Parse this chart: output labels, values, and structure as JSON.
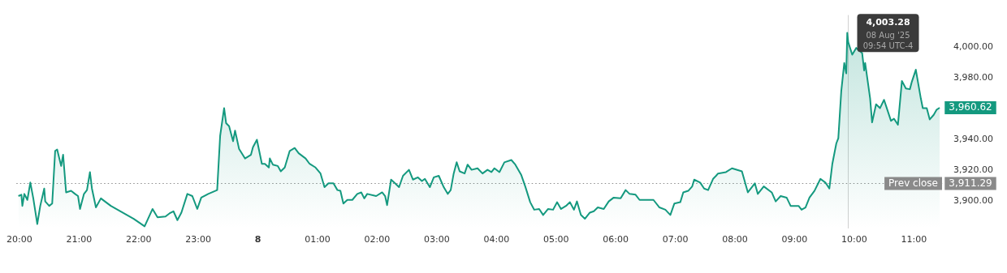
{
  "chart_data": {
    "type": "area",
    "x": [
      "2025-08-07T19:59",
      "2025-08-07T20:02",
      "2025-08-07T20:03",
      "2025-08-07T20:05",
      "2025-08-07T20:08",
      "2025-08-07T20:11",
      "2025-08-07T20:14",
      "2025-08-07T20:18",
      "2025-08-07T20:21",
      "2025-08-07T20:25",
      "2025-08-07T20:26",
      "2025-08-07T20:30",
      "2025-08-07T20:33",
      "2025-08-07T20:36",
      "2025-08-07T20:38",
      "2025-08-07T20:42",
      "2025-08-07T20:44",
      "2025-08-07T20:47",
      "2025-08-07T20:52",
      "2025-08-07T20:56",
      "2025-08-07T20:59",
      "2025-08-07T21:01",
      "2025-08-07T21:05",
      "2025-08-07T21:08",
      "2025-08-07T21:11",
      "2025-08-07T21:13",
      "2025-08-07T21:17",
      "2025-08-07T21:22",
      "2025-08-07T21:26",
      "2025-08-07T21:32",
      "2025-08-07T21:55",
      "2025-08-07T22:06",
      "2025-08-07T22:14",
      "2025-08-07T22:19",
      "2025-08-07T22:27",
      "2025-08-07T22:31",
      "2025-08-07T22:35",
      "2025-08-07T22:39",
      "2025-08-07T22:43",
      "2025-08-07T22:49",
      "2025-08-07T22:54",
      "2025-08-07T22:59",
      "2025-08-07T23:03",
      "2025-08-07T23:10",
      "2025-08-07T23:19",
      "2025-08-07T23:22",
      "2025-08-07T23:26",
      "2025-08-07T23:28",
      "2025-08-07T23:31",
      "2025-08-07T23:35",
      "2025-08-07T23:37",
      "2025-08-07T23:41",
      "2025-08-07T23:47",
      "2025-08-07T23:53",
      "2025-08-07T23:55",
      "2025-08-07T23:59",
      "2025-08-08T00:04",
      "2025-08-08T00:07",
      "2025-08-08T00:11",
      "2025-08-08T00:12",
      "2025-08-08T00:15",
      "2025-08-08T00:20",
      "2025-08-08T00:23",
      "2025-08-08T00:27",
      "2025-08-08T00:32",
      "2025-08-08T00:37",
      "2025-08-08T00:41",
      "2025-08-08T00:48",
      "2025-08-08T00:52",
      "2025-08-08T00:58",
      "2025-08-08T01:03",
      "2025-08-08T01:07",
      "2025-08-08T01:11",
      "2025-08-08T01:16",
      "2025-08-08T01:20",
      "2025-08-08T01:23",
      "2025-08-08T01:26",
      "2025-08-08T01:30",
      "2025-08-08T01:35",
      "2025-08-08T01:40",
      "2025-08-08T01:44",
      "2025-08-08T01:47",
      "2025-08-08T01:50",
      "2025-08-08T01:59",
      "2025-08-08T02:05",
      "2025-08-08T02:08",
      "2025-08-08T02:10",
      "2025-08-08T02:14",
      "2025-08-08T02:18",
      "2025-08-08T02:22",
      "2025-08-08T02:26",
      "2025-08-08T02:32",
      "2025-08-08T02:36",
      "2025-08-08T02:41",
      "2025-08-08T02:45",
      "2025-08-08T02:48",
      "2025-08-08T02:53",
      "2025-08-08T02:57",
      "2025-08-08T03:02",
      "2025-08-08T03:07",
      "2025-08-08T03:11",
      "2025-08-08T03:14",
      "2025-08-08T03:17",
      "2025-08-08T03:20",
      "2025-08-08T03:23",
      "2025-08-08T03:28",
      "2025-08-08T03:31",
      "2025-08-08T03:35",
      "2025-08-08T03:41",
      "2025-08-08T03:46",
      "2025-08-08T03:51",
      "2025-08-08T03:55",
      "2025-08-08T03:58",
      "2025-08-08T04:03",
      "2025-08-08T04:08",
      "2025-08-08T04:15",
      "2025-08-08T04:19",
      "2025-08-08T04:25",
      "2025-08-08T04:29",
      "2025-08-08T04:34",
      "2025-08-08T04:38",
      "2025-08-08T04:43",
      "2025-08-08T04:47",
      "2025-08-08T04:52",
      "2025-08-08T04:57",
      "2025-08-08T05:01",
      "2025-08-08T05:05",
      "2025-08-08T05:10",
      "2025-08-08T05:14",
      "2025-08-08T05:18",
      "2025-08-08T05:21",
      "2025-08-08T05:25",
      "2025-08-08T05:29",
      "2025-08-08T05:34",
      "2025-08-08T05:38",
      "2025-08-08T05:42",
      "2025-08-08T05:48",
      "2025-08-08T05:53",
      "2025-08-08T05:58",
      "2025-08-08T06:05",
      "2025-08-08T06:10",
      "2025-08-08T06:14",
      "2025-08-08T06:20",
      "2025-08-08T06:24",
      "2025-08-08T06:31",
      "2025-08-08T06:38",
      "2025-08-08T06:44",
      "2025-08-08T06:50",
      "2025-08-08T06:55",
      "2025-08-08T06:59",
      "2025-08-08T07:05",
      "2025-08-08T07:08",
      "2025-08-08T07:13",
      "2025-08-08T07:17",
      "2025-08-08T07:19",
      "2025-08-08T07:25",
      "2025-08-08T07:29",
      "2025-08-08T07:33",
      "2025-08-08T07:38",
      "2025-08-08T07:41",
      "2025-08-08T07:43",
      "2025-08-08T07:51",
      "2025-08-08T07:57",
      "2025-08-08T08:07",
      "2025-08-08T08:13",
      "2025-08-08T08:20",
      "2025-08-08T08:23",
      "2025-08-08T08:29",
      "2025-08-08T08:37",
      "2025-08-08T08:41",
      "2025-08-08T08:46",
      "2025-08-08T08:52",
      "2025-08-08T08:56",
      "2025-08-08T09:04",
      "2025-08-08T09:07",
      "2025-08-08T09:11",
      "2025-08-08T09:15",
      "2025-08-08T09:20",
      "2025-08-08T09:26",
      "2025-08-08T09:31",
      "2025-08-08T09:35",
      "2025-08-08T09:38",
      "2025-08-08T09:42",
      "2025-08-08T09:44",
      "2025-08-08T09:47",
      "2025-08-08T09:50",
      "2025-08-08T09:52",
      "2025-08-08T09:53",
      "2025-08-08T09:54",
      "2025-08-08T09:58",
      "2025-08-08T10:02",
      "2025-08-08T10:08",
      "2025-08-08T10:10",
      "2025-08-08T10:11",
      "2025-08-08T10:16",
      "2025-08-08T10:18",
      "2025-08-08T10:22",
      "2025-08-08T10:26",
      "2025-08-08T10:30",
      "2025-08-08T10:32",
      "2025-08-08T10:37",
      "2025-08-08T10:40",
      "2025-08-08T10:44",
      "2025-08-08T10:48",
      "2025-08-08T10:52",
      "2025-08-08T10:56",
      "2025-08-08T10:58",
      "2025-08-08T11:02",
      "2025-08-08T11:07",
      "2025-08-08T11:09",
      "2025-08-08T11:13",
      "2025-08-08T11:16",
      "2025-08-08T11:20",
      "2025-08-08T11:23",
      "2025-08-08T11:26"
    ],
    "series": [
      {
        "color": "#14997f",
        "values": [
          3903.1,
          3904.0,
          3896.7,
          3904.5,
          3900.6,
          3911.9,
          3901.6,
          3884.9,
          3896.7,
          3908.0,
          3899.6,
          3896.7,
          3898.2,
          3932.5,
          3933.4,
          3922.7,
          3930.0,
          3905.5,
          3906.5,
          3904.5,
          3903.1,
          3894.7,
          3904.5,
          3907.0,
          3918.7,
          3908.0,
          3895.7,
          3901.6,
          3899.6,
          3896.7,
          3888.3,
          3883.4,
          3894.7,
          3889.3,
          3889.8,
          3891.8,
          3893.2,
          3887.4,
          3892.3,
          3904.5,
          3903.1,
          3894.7,
          3902.1,
          3904.5,
          3907.0,
          3942.3,
          3960.4,
          3950.6,
          3948.6,
          3938.8,
          3945.7,
          3933.9,
          3927.6,
          3930.0,
          3934.9,
          3939.8,
          3924.1,
          3924.1,
          3921.7,
          3927.6,
          3923.6,
          3922.7,
          3919.2,
          3921.7,
          3932.5,
          3934.4,
          3931.0,
          3927.6,
          3924.1,
          3921.7,
          3917.8,
          3908.9,
          3911.4,
          3911.4,
          3907.0,
          3906.5,
          3898.2,
          3900.6,
          3900.6,
          3904.5,
          3905.5,
          3901.6,
          3904.5,
          3903.1,
          3905.5,
          3903.1,
          3897.2,
          3913.8,
          3911.4,
          3908.9,
          3916.3,
          3920.2,
          3913.8,
          3915.3,
          3912.9,
          3914.3,
          3908.9,
          3915.3,
          3916.3,
          3908.9,
          3904.5,
          3907.0,
          3917.8,
          3925.1,
          3919.2,
          3917.8,
          3923.6,
          3920.2,
          3921.2,
          3917.8,
          3920.2,
          3918.7,
          3921.2,
          3918.7,
          3925.1,
          3926.6,
          3923.6,
          3916.8,
          3909.4,
          3899.1,
          3894.2,
          3894.7,
          3890.8,
          3894.7,
          3894.2,
          3899.1,
          3894.7,
          3896.7,
          3899.1,
          3894.2,
          3899.6,
          3890.8,
          3888.3,
          3892.3,
          3893.2,
          3895.7,
          3894.7,
          3899.6,
          3902.1,
          3901.6,
          3907.0,
          3904.5,
          3904.0,
          3900.6,
          3900.6,
          3900.6,
          3895.7,
          3894.2,
          3890.8,
          3898.2,
          3899.1,
          3905.5,
          3906.5,
          3909.4,
          3913.8,
          3911.9,
          3908.0,
          3907.0,
          3914.3,
          3916.3,
          3917.8,
          3918.7,
          3921.2,
          3919.2,
          3905.5,
          3911.4,
          3904.5,
          3909.4,
          3905.5,
          3899.6,
          3903.1,
          3902.1,
          3896.7,
          3896.7,
          3894.2,
          3895.7,
          3902.1,
          3906.5,
          3914.3,
          3911.9,
          3908.0,
          3924.1,
          3937.4,
          3940.8,
          3971.7,
          3989.8,
          3983.0,
          4009.4,
          4003.28,
          3995.2,
          3999.6,
          3996.2,
          3984.9,
          3989.8,
          3966.8,
          3951.1,
          3962.9,
          3960.4,
          3965.8,
          3961.9,
          3952.1,
          3953.5,
          3949.6,
          3978.1,
          3973.2,
          3972.7,
          3977.6,
          3985.4,
          3966.8,
          3960.4,
          3960.4,
          3953.0,
          3956.0,
          3959.4,
          3960.62
        ],
        "value_labels": [
          null,
          null,
          null,
          null,
          null,
          null,
          null,
          null,
          null,
          null,
          null,
          null,
          null,
          null,
          null,
          null,
          null,
          null,
          null,
          null,
          null,
          null,
          null,
          null,
          null,
          null,
          null,
          null,
          null,
          null,
          null,
          null,
          null,
          null,
          null,
          null,
          null,
          null,
          null,
          null,
          null,
          null,
          null,
          null,
          null,
          null,
          null,
          null,
          null,
          null,
          null,
          null,
          null,
          null,
          null,
          null,
          null,
          null,
          null,
          null,
          null,
          null,
          null,
          null,
          null,
          null,
          null,
          null,
          null,
          null,
          null,
          null,
          null,
          null,
          null,
          null,
          null,
          null,
          null,
          null,
          null,
          null,
          null,
          null,
          null,
          null,
          null,
          null,
          null,
          null,
          null,
          null,
          null,
          null,
          null,
          null,
          null,
          null,
          null,
          null,
          null,
          null,
          null,
          null,
          null,
          null,
          null,
          null,
          null,
          null,
          null,
          null,
          null,
          null,
          null,
          null,
          null,
          null,
          null,
          null,
          null,
          null,
          null,
          null,
          null,
          null,
          null,
          null,
          null,
          null,
          null,
          null,
          null,
          null,
          null,
          null,
          null,
          null,
          null,
          null,
          null,
          null,
          null,
          null,
          null,
          null,
          null,
          null,
          null,
          null,
          null,
          null,
          null,
          null,
          null,
          null,
          null,
          null,
          null,
          null,
          null,
          null,
          null,
          null,
          null,
          null,
          null,
          null,
          null,
          null,
          null,
          null,
          null,
          null,
          null,
          null,
          null,
          null,
          null,
          null,
          null,
          null,
          null,
          null,
          null,
          null,
          null,
          null,
          null,
          null,
          null,
          null,
          null,
          null,
          null,
          null,
          null,
          null,
          null,
          null,
          null,
          null,
          null,
          null,
          null,
          null,
          null,
          null,
          null,
          null,
          null,
          null,
          null,
          null,
          "3,960.62"
        ]
      }
    ],
    "xlim": [
      "2025-08-07T19:57",
      "2025-08-08T11:30"
    ],
    "xticks": [
      {
        "value": "2025-08-07T20:00",
        "label": "20:00"
      },
      {
        "value": "2025-08-07T21:00",
        "label": "21:00"
      },
      {
        "value": "2025-08-07T22:00",
        "label": "22:00"
      },
      {
        "value": "2025-08-07T23:00",
        "label": "23:00"
      },
      {
        "value": "2025-08-08T00:00",
        "label": "8"
      },
      {
        "value": "2025-08-08T01:00",
        "label": "01:00"
      },
      {
        "value": "2025-08-08T02:00",
        "label": "02:00"
      },
      {
        "value": "2025-08-08T03:00",
        "label": "03:00"
      },
      {
        "value": "2025-08-08T04:00",
        "label": "04:00"
      },
      {
        "value": "2025-08-08T05:00",
        "label": "05:00"
      },
      {
        "value": "2025-08-08T06:00",
        "label": "06:00"
      },
      {
        "value": "2025-08-08T07:00",
        "label": "07:00"
      },
      {
        "value": "2025-08-08T08:00",
        "label": "08:00"
      },
      {
        "value": "2025-08-08T09:00",
        "label": "09:00"
      },
      {
        "value": "2025-08-08T10:00",
        "label": "10:00"
      },
      {
        "value": "2025-08-08T11:00",
        "label": "11:00"
      }
    ],
    "ylim": [
      3882,
      4021
    ],
    "yticks": [
      {
        "value": 3900,
        "label": "3,900.00"
      },
      {
        "value": 3920,
        "label": "3,920.00"
      },
      {
        "value": 3940,
        "label": "3,940.00"
      },
      {
        "value": 3980,
        "label": "3,980.00"
      },
      {
        "value": 4000,
        "label": "4,000.00"
      }
    ],
    "ref_lines": [
      {
        "axis": "y",
        "value": 3911.29,
        "label": "Prev close",
        "color": "#8a8a8a",
        "line_style": "dotted"
      },
      {
        "axis": "x",
        "value": "2025-08-08T09:54",
        "color": "#d0d0d0",
        "line_style": "solid"
      }
    ],
    "annotations": [
      {
        "text": "4,003.28",
        "x": "2025-08-08T09:54",
        "y": 4003.28
      },
      {
        "text": "08 Aug '25",
        "x": "2025-08-08T09:54",
        "y": 4003.28
      },
      {
        "text": "09:54 UTC-4",
        "x": "2025-08-08T09:54",
        "y": 4003.28
      },
      {
        "text": "3,911.29",
        "x": "2025-08-08T11:30",
        "y": 3911.29
      }
    ],
    "grid": false,
    "legend": false,
    "marker": "none",
    "line_style": "solid"
  }
}
